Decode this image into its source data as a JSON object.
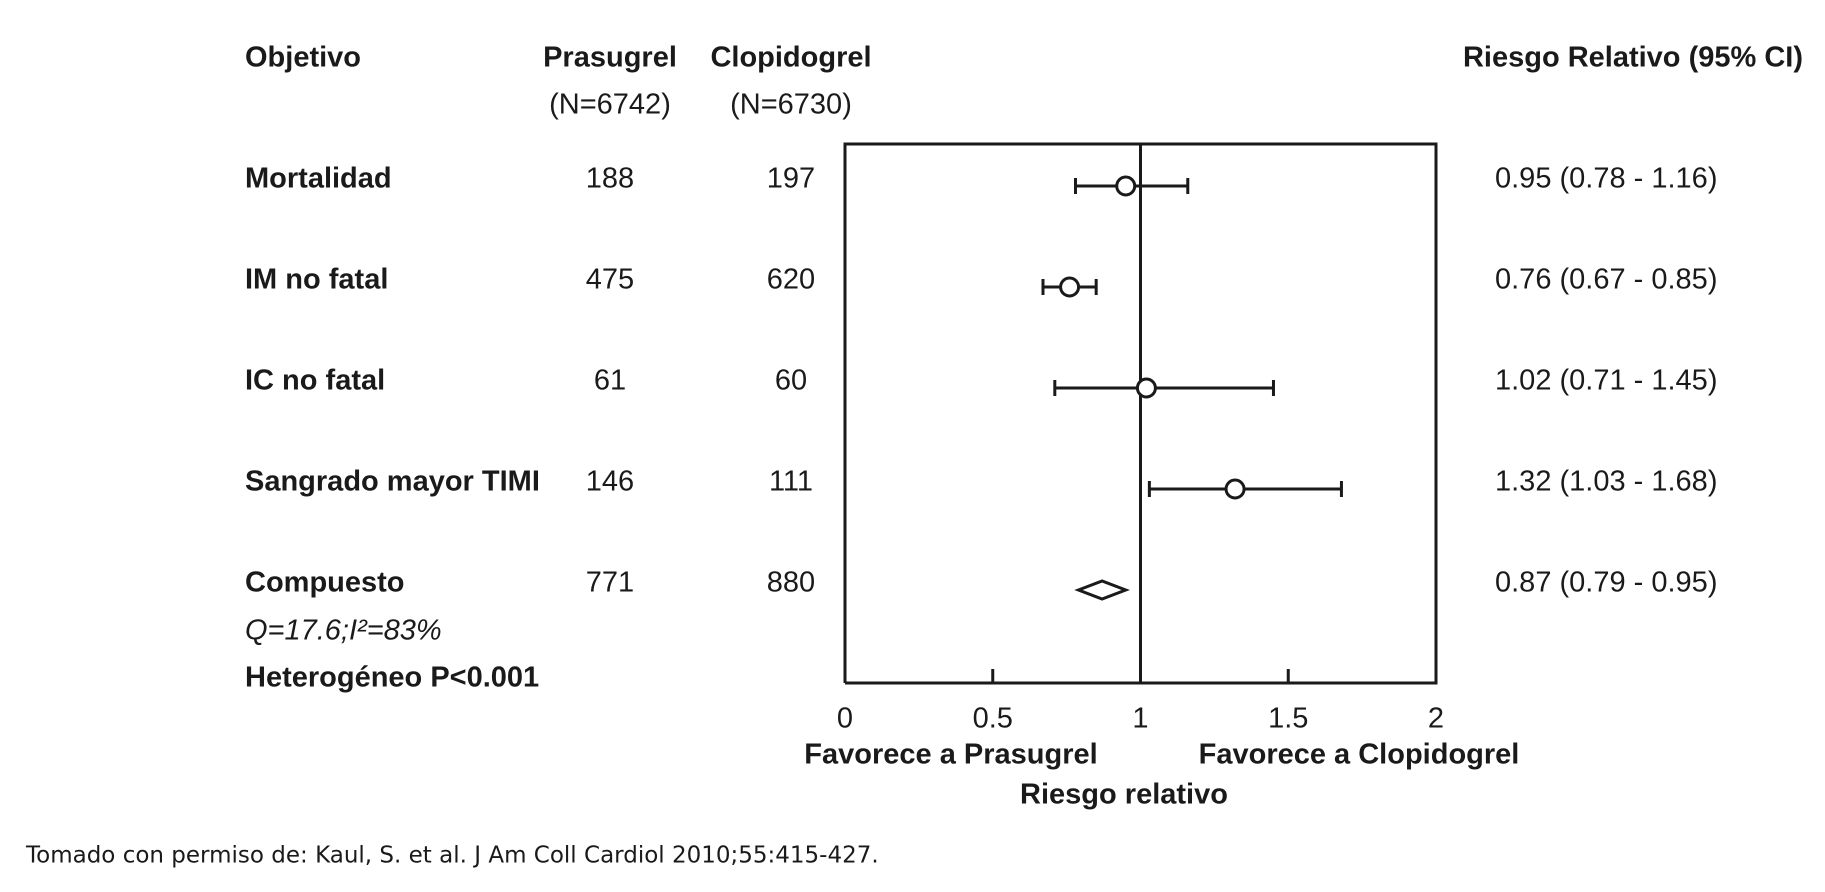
{
  "chart_data": {
    "type": "forest",
    "column_header": "Objetivo",
    "effect_header": "Riesgo Relativo (95% CI)",
    "categories": [
      "Mortalidad",
      "IM no fatal",
      "IC no fatal",
      "Sangrado mayor TIMI",
      "Compuesto"
    ],
    "groups": [
      {
        "name": "Prasugrel",
        "n_label": "(N=6742)",
        "values": [
          188,
          475,
          61,
          146,
          771
        ]
      },
      {
        "name": "Clopidogrel",
        "n_label": "(N=6730)",
        "values": [
          197,
          620,
          60,
          111,
          880
        ]
      }
    ],
    "values": [
      0.95,
      0.76,
      1.02,
      1.32,
      0.87
    ],
    "lower": [
      0.78,
      0.67,
      0.71,
      1.03,
      0.79
    ],
    "upper": [
      1.16,
      0.85,
      1.45,
      1.68,
      0.95
    ],
    "value_labels": [
      "0.95 (0.78 - 1.16)",
      "0.76 (0.67 - 0.85)",
      "1.02 (0.71 - 1.45)",
      "1.32 (1.03 - 1.68)",
      "0.87 (0.79 - 0.95)"
    ],
    "markers": [
      "circle",
      "circle",
      "circle",
      "circle",
      "diamond"
    ],
    "notes": [
      "Q=17.6;I²=83%",
      "Heterogéneo P<0.001"
    ],
    "xlim": [
      0,
      2
    ],
    "xticks": [
      0,
      0.5,
      1,
      1.5,
      2
    ],
    "reference": 1,
    "left_label": "Favorece a Prasugrel",
    "right_label": "Favorece a Clopidogrel",
    "xlabel": "Riesgo relativo"
  },
  "source": "Tomado con permiso de: Kaul, S. et al. J Am Coll Cardiol 2010;55:415-427."
}
